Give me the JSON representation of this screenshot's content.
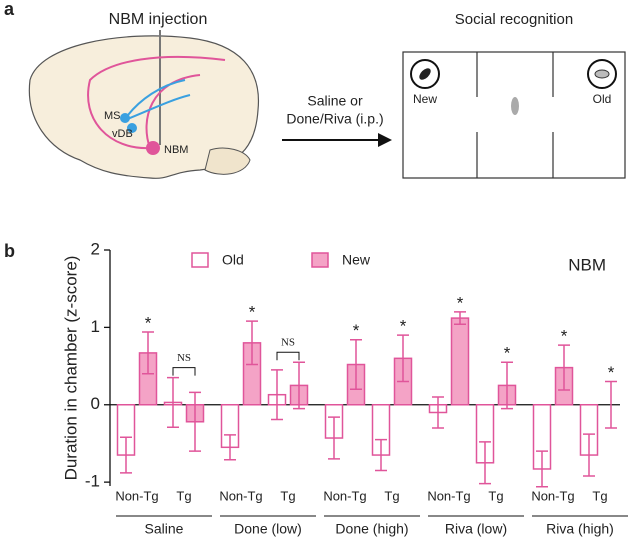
{
  "panel_a": {
    "label": "a",
    "injection_title": "NBM injection",
    "region_ms": "MS",
    "region_vdb": "vDB",
    "region_nbm": "NBM",
    "treatment_line1": "Saline or",
    "treatment_line2": "Done/Riva (i.p.)",
    "test_title": "Social recognition",
    "chamber_new": "New",
    "chamber_old": "Old"
  },
  "chart_data": {
    "type": "bar",
    "panel_label": "b",
    "annotation_title": "NBM",
    "ylabel": "Duration in chamber (z-score)",
    "categories": [
      "Non-Tg",
      "Tg",
      "Non-Tg",
      "Tg",
      "Non-Tg",
      "Tg",
      "Non-Tg",
      "Tg",
      "Non-Tg",
      "Tg"
    ],
    "groups": [
      "Saline",
      "Done (low)",
      "Done (high)",
      "Riva (low)",
      "Riva (high)"
    ],
    "series": [
      {
        "name": "Old",
        "color": "#ffffff",
        "edge": "#e0559a",
        "values": [
          -0.65,
          0.03,
          -0.55,
          0.13,
          -0.43,
          -0.65,
          -0.1,
          -0.75,
          -0.83,
          -0.65
        ],
        "errors": [
          0.23,
          0.32,
          0.16,
          0.32,
          0.27,
          0.2,
          0.2,
          0.27,
          0.23,
          0.27
        ]
      },
      {
        "name": "New",
        "color": "#f4a3c6",
        "edge": "#e0559a",
        "values": [
          0.67,
          -0.22,
          0.8,
          0.25,
          0.52,
          0.6,
          1.12,
          0.25,
          0.48,
          0.0
        ],
        "errors": [
          0.27,
          0.38,
          0.28,
          0.3,
          0.32,
          0.3,
          0.08,
          0.3,
          0.29,
          0.3
        ]
      }
    ],
    "annotations": [
      "*",
      "NS",
      "*",
      "NS",
      "*",
      "*",
      "*",
      "*",
      "*",
      "*"
    ],
    "ylim": [
      -1.05,
      2
    ],
    "yticks": [
      -1,
      0,
      1,
      2
    ]
  }
}
